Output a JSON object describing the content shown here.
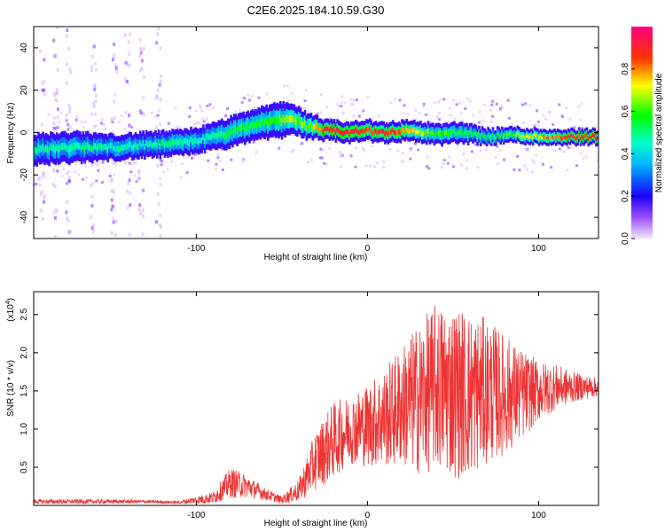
{
  "figure": {
    "title": "C2E6.2025.184.10.59.G30"
  },
  "chart_data": [
    {
      "type": "heatmap",
      "xlabel": "Height of straight line (km)",
      "ylabel": "Frequency (Hz)",
      "xlim": [
        -195,
        135
      ],
      "ylim": [
        -50,
        50
      ],
      "x_ticks": [
        -100,
        0,
        100
      ],
      "x_tick_labels": [
        "-100",
        "0",
        "100"
      ],
      "y_ticks": [
        -40,
        -20,
        0,
        20,
        40
      ],
      "y_tick_labels": [
        "-40",
        "-20",
        "0",
        "20",
        "40"
      ],
      "grid": false,
      "colorbar": {
        "label": "Normalized spectral amplitude",
        "range": [
          0,
          1
        ],
        "ticks": [
          0.0,
          0.2,
          0.4,
          0.6,
          0.8
        ],
        "tick_labels": [
          "0.0",
          "0.2",
          "0.4",
          "0.6",
          "0.8"
        ],
        "colormap": [
          "#f0e0ff",
          "#7b2cff",
          "#0000ff",
          "#00ffff",
          "#00ff00",
          "#ffff00",
          "#ff0000",
          "#ff0080"
        ]
      },
      "ridge": {
        "x": [
          -195,
          -170,
          -150,
          -130,
          -110,
          -95,
          -80,
          -65,
          -50,
          -45,
          -35,
          -25,
          -10,
          0,
          10,
          25,
          40,
          55,
          70,
          85,
          100,
          115,
          135
        ],
        "frequency": [
          -8,
          -7,
          -7,
          -6,
          -5,
          -3,
          0,
          4,
          6,
          7,
          3,
          1,
          0,
          1,
          0,
          1,
          -1,
          0,
          -2,
          -1,
          -2,
          -2,
          -2
        ],
        "amplitude": [
          0.45,
          0.5,
          0.45,
          0.45,
          0.5,
          0.45,
          0.55,
          0.55,
          0.6,
          0.7,
          0.6,
          0.9,
          0.9,
          0.85,
          0.9,
          0.75,
          0.6,
          0.55,
          0.55,
          0.6,
          0.75,
          0.85,
          0.9
        ],
        "width_hz": [
          6,
          6,
          5,
          5,
          5,
          5,
          6,
          6,
          7,
          6,
          5,
          4,
          4,
          4,
          4,
          4,
          4,
          4,
          3,
          3,
          3,
          3,
          3
        ]
      }
    },
    {
      "type": "line",
      "xlabel": "Height of straight line (km)",
      "ylabel": "SNR (10 * v/v)",
      "multiplier_label": "(x10",
      "multiplier_exp": "4",
      "xlim": [
        -195,
        135
      ],
      "ylim": [
        0,
        2.8
      ],
      "x_ticks": [
        -100,
        0,
        100
      ],
      "x_tick_labels": [
        "-100",
        "0",
        "100"
      ],
      "y_ticks": [
        0.5,
        1.0,
        1.5,
        2.0,
        2.5
      ],
      "y_tick_labels": [
        "0.5",
        "1.0",
        "1.5",
        "2.0",
        "2.5"
      ],
      "grid": false,
      "series": [
        {
          "color": "#ee3333",
          "envelope_x": [
            -195,
            -160,
            -130,
            -110,
            -90,
            -80,
            -70,
            -60,
            -50,
            -40,
            -30,
            -20,
            -10,
            0,
            10,
            20,
            30,
            40,
            50,
            60,
            70,
            80,
            90,
            100,
            110,
            120,
            135
          ],
          "envelope_center": [
            0.05,
            0.05,
            0.05,
            0.04,
            0.1,
            0.3,
            0.25,
            0.15,
            0.07,
            0.2,
            0.6,
            0.85,
            1.0,
            1.05,
            1.15,
            1.3,
            1.4,
            1.55,
            1.5,
            1.45,
            1.5,
            1.45,
            1.45,
            1.5,
            1.55,
            1.55,
            1.55
          ],
          "envelope_amplitude": [
            0.03,
            0.03,
            0.02,
            0.02,
            0.08,
            0.2,
            0.15,
            0.08,
            0.05,
            0.15,
            0.4,
            0.5,
            0.45,
            0.55,
            0.65,
            0.8,
            1.0,
            1.1,
            1.15,
            1.1,
            0.95,
            0.8,
            0.6,
            0.4,
            0.3,
            0.2,
            0.12
          ]
        }
      ]
    }
  ]
}
